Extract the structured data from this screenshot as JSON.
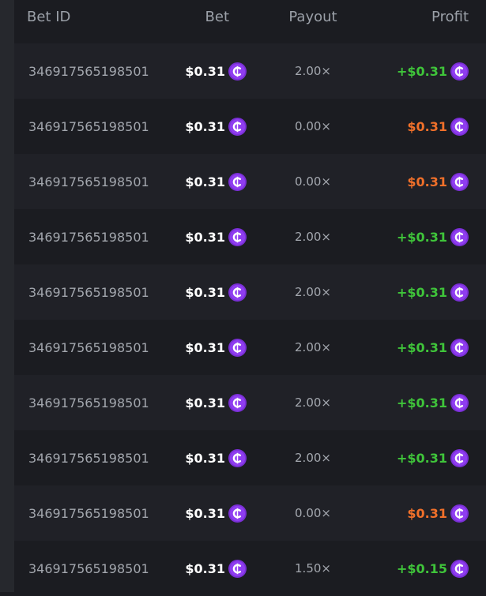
{
  "table": {
    "columns": [
      "Bet ID",
      "Bet",
      "Payout",
      "Profit"
    ],
    "rows": [
      [
        "346917565198501",
        "$0.31",
        "2.00×",
        "+$0.31"
      ],
      [
        "346917565198501",
        "$0.31",
        "0.00×",
        "$0.31"
      ],
      [
        "346917565198501",
        "$0.31",
        "0.00×",
        "$0.31"
      ],
      [
        "346917565198501",
        "$0.31",
        "2.00×",
        "+$0.31"
      ],
      [
        "346917565198501",
        "$0.31",
        "2.00×",
        "+$0.31"
      ],
      [
        "346917565198501",
        "$0.31",
        "2.00×",
        "+$0.31"
      ],
      [
        "346917565198501",
        "$0.31",
        "2.00×",
        "+$0.31"
      ],
      [
        "346917565198501",
        "$0.31",
        "2.00×",
        "+$0.31"
      ],
      [
        "346917565198501",
        "$0.31",
        "0.00×",
        "$0.31"
      ],
      [
        "346917565198501",
        "$0.31",
        "1.50×",
        "+$0.15"
      ]
    ]
  }
}
